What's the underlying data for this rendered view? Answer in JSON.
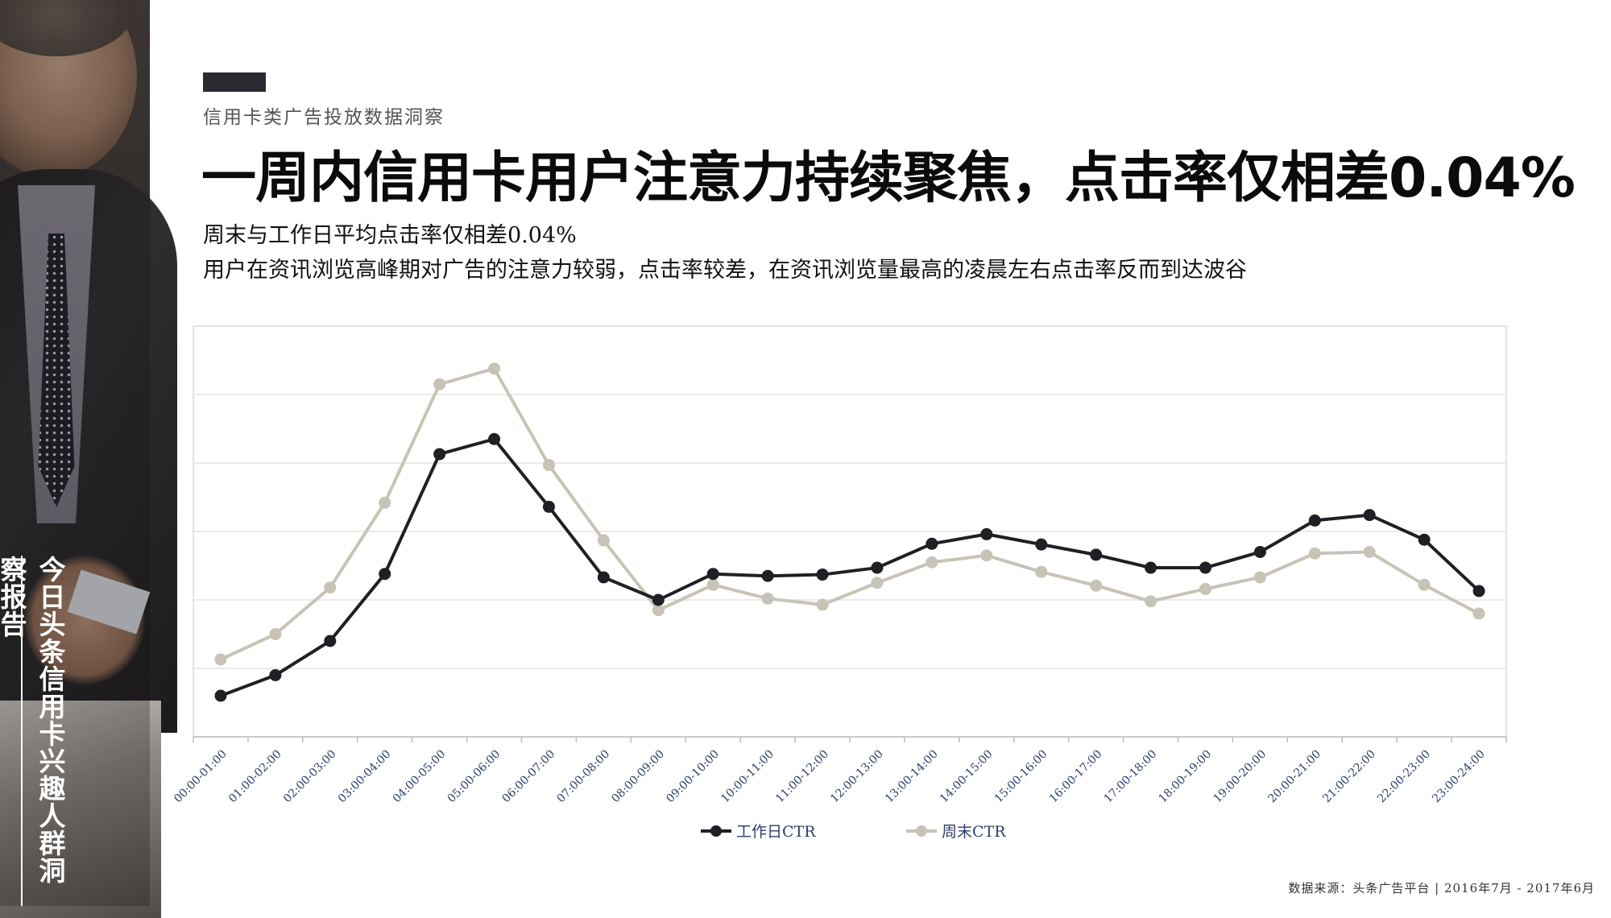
{
  "side_title": "今日头条信用卡兴趣人群洞察报告",
  "eyebrow": "信用卡类广告投放数据洞察",
  "title": "一周内信用卡用户注意力持续聚焦，点击率仅相差0.04%",
  "subtitle_1": "周末与工作日平均点击率仅相差0.04%",
  "subtitle_2": "用户在资讯浏览高峰期对广告的注意力较弱，点击率较差，在资讯浏览量最高的凌晨左右点击率反而到达波谷",
  "source": "数据来源：头条广告平台 | 2016年7月 - 2017年6月",
  "colors": {
    "workday": "#1f1f24",
    "weekend": "#c7c3b7",
    "grid": "#e4e4e4",
    "tick": "#2f3d6b"
  },
  "chart_data": {
    "type": "line",
    "title": "",
    "xlabel": "",
    "ylabel": "",
    "ylim": [
      0,
      6
    ],
    "grid": true,
    "legend_position": "bottom",
    "categories": [
      "00:00-01:00",
      "01:00-02:00",
      "02:00-03:00",
      "03:00-04:00",
      "04:00-05:00",
      "05:00-06:00",
      "06:00-07:00",
      "07:00-08:00",
      "08:00-09:00",
      "09:00-10:00",
      "10:00-11:00",
      "11:00-12:00",
      "12:00-13:00",
      "13:00-14:00",
      "14:00-15:00",
      "15:00-16:00",
      "16:00-17:00",
      "17:00-18:00",
      "18:00-19:00",
      "19:00-20:00",
      "20:00-21:00",
      "21:00-22:00",
      "22:00-23:00",
      "23:00-24:00"
    ],
    "series": [
      {
        "name": "工作日CTR",
        "values": [
          0.6,
          0.9,
          1.4,
          2.38,
          4.13,
          4.35,
          3.36,
          2.33,
          2.0,
          2.38,
          2.35,
          2.37,
          2.47,
          2.82,
          2.96,
          2.81,
          2.66,
          2.47,
          2.47,
          2.7,
          3.16,
          3.24,
          2.88,
          2.13
        ]
      },
      {
        "name": "周末CTR",
        "values": [
          1.13,
          1.5,
          2.18,
          3.42,
          5.15,
          5.38,
          3.97,
          2.87,
          1.85,
          2.22,
          2.02,
          1.93,
          2.25,
          2.55,
          2.65,
          2.41,
          2.21,
          1.98,
          2.16,
          2.33,
          2.68,
          2.7,
          2.22,
          1.8
        ]
      }
    ]
  }
}
